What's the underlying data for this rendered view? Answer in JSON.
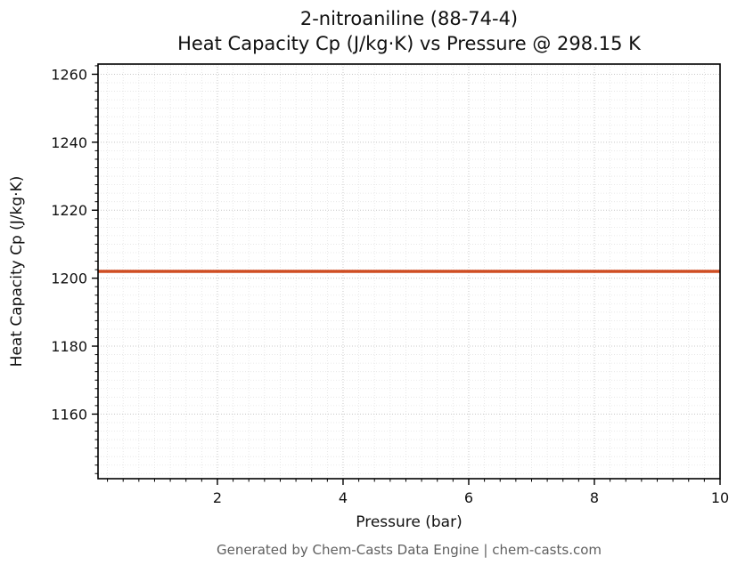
{
  "footer": {
    "text": "Generated by Chem-Casts Data Engine | chem-casts.com"
  },
  "chart_data": {
    "type": "line",
    "title": "2-nitroaniline (88-74-4)",
    "subtitle": "Heat Capacity Cp (J/kg·K) vs Pressure @ 298.15 K",
    "xlabel": "Pressure (bar)",
    "ylabel": "Heat Capacity Cp (J/kg·K)",
    "xlim": [
      0.1,
      10
    ],
    "ylim": [
      1141,
      1263
    ],
    "xticks": [
      2,
      4,
      6,
      8,
      10
    ],
    "yticks": [
      1160,
      1180,
      1200,
      1220,
      1240,
      1260
    ],
    "x_minor_step": 0.25,
    "y_minor_step": 2.5,
    "grid": true,
    "legend": "none",
    "colors": {
      "line": "#cf4d22",
      "axis": "#000000",
      "major_grid": "#c9c9c9",
      "minor_grid": "#e3e3e3"
    },
    "series": [
      {
        "name": "Heat Capacity Cp",
        "x": [
          0.1,
          10
        ],
        "y": [
          1202,
          1202
        ]
      }
    ]
  }
}
